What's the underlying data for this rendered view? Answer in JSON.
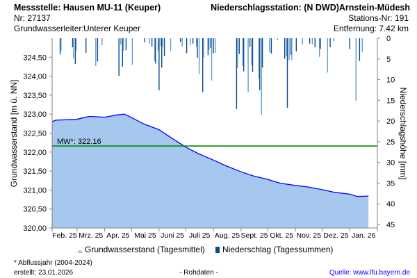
{
  "header": {
    "station": "Messstelle: Hausen MU-11 (Keuper)",
    "nr": "Nr: 27137",
    "aquifer_label": "Grundwasserleiter:",
    "aquifer": "Unterer Keuper",
    "precip_station": "Niederschlagsstation: (N DWD)Arnstein-Müdesh",
    "precip_nr": "Stations-Nr: 191",
    "distance": "Entfernung: 7.42 km"
  },
  "footer": {
    "note": "* Abflussjahr (2004-2024)",
    "created": "erstellt:  23.01.2026",
    "rawdata": "- Rohdaten -",
    "source": "Quelle: www.lfu.bayern.de"
  },
  "colors": {
    "fill": "#a6c8ef",
    "line": "#0000ff",
    "mean": "#008a00",
    "bar_dark": "#0b4a8b",
    "bar_light": "#5e9bd0",
    "source": "#0000ff"
  },
  "chart_data": {
    "type": "area",
    "ylabel": "Grundwasserstand [m ü. NN]",
    "y2label": "Niederschlagshöhe [mm]",
    "ylim": [
      320.0,
      325.0
    ],
    "yticks": [
      "320,00",
      "320,50",
      "321,00",
      "321,50",
      "322,00",
      "322,50",
      "323,00",
      "323,50",
      "324,00",
      "324,50"
    ],
    "y2lim": [
      0,
      45
    ],
    "y2ticks": [
      "0",
      "5",
      "10",
      "15",
      "20",
      "25",
      "30",
      "35",
      "40",
      "45"
    ],
    "xlim": [
      "2025-02-01",
      "2026-02-01"
    ],
    "xticks": [
      "Feb. 25",
      "Mrz. 25",
      "Apr. 25",
      "Mai 25",
      "Juni 25",
      "Juli 25",
      "Aug. 25",
      "Sept. 25",
      "Okt. 25",
      "Nov. 25",
      "Dez. 25",
      "Jan. 26"
    ],
    "mean_line": {
      "label": "MW*: 322.16",
      "value": 322.16
    },
    "legend": [
      "Grundwasserstand (Tagesmittel)",
      "Niederschlag (Tagessummen)"
    ],
    "series": [
      {
        "name": "Grundwasserstand (Tagesmittel)",
        "axis": "left",
        "points": [
          [
            "2025-02-01",
            322.8
          ],
          [
            "2025-02-05",
            322.84
          ],
          [
            "2025-02-28",
            322.86
          ],
          [
            "2025-03-15",
            322.94
          ],
          [
            "2025-04-01",
            322.92
          ],
          [
            "2025-04-15",
            322.98
          ],
          [
            "2025-04-23",
            323.0
          ],
          [
            "2025-05-01",
            322.91
          ],
          [
            "2025-05-15",
            322.74
          ],
          [
            "2025-06-01",
            322.59
          ],
          [
            "2025-06-15",
            322.37
          ],
          [
            "2025-07-01",
            322.13
          ],
          [
            "2025-07-15",
            321.96
          ],
          [
            "2025-08-01",
            321.79
          ],
          [
            "2025-08-15",
            321.64
          ],
          [
            "2025-09-01",
            321.48
          ],
          [
            "2025-09-15",
            321.37
          ],
          [
            "2025-10-01",
            321.28
          ],
          [
            "2025-10-15",
            321.18
          ],
          [
            "2025-11-01",
            321.12
          ],
          [
            "2025-11-15",
            321.08
          ],
          [
            "2025-12-01",
            321.01
          ],
          [
            "2025-12-15",
            320.94
          ],
          [
            "2026-01-01",
            320.89
          ],
          [
            "2026-01-10",
            320.83
          ],
          [
            "2026-01-22",
            320.84
          ]
        ]
      },
      {
        "name": "Niederschlag (Tagessummen)",
        "axis": "right",
        "points": [
          [
            "2025-02-10",
            3.9
          ],
          [
            "2025-02-11",
            3.0
          ],
          [
            "2025-02-24",
            2.2
          ],
          [
            "2025-02-25",
            4.9
          ],
          [
            "2025-02-27",
            6.2
          ],
          [
            "2025-02-28",
            3.0
          ],
          [
            "2025-03-11",
            3.5
          ],
          [
            "2025-03-22",
            6.7
          ],
          [
            "2025-03-24",
            5.6
          ],
          [
            "2025-03-29",
            1.7
          ],
          [
            "2025-04-17",
            9.1
          ],
          [
            "2025-04-19",
            1.5
          ],
          [
            "2025-04-21",
            6.9
          ],
          [
            "2025-04-22",
            3.1
          ],
          [
            "2025-04-25",
            2.9
          ],
          [
            "2025-05-02",
            6.4
          ],
          [
            "2025-05-16",
            1.0
          ],
          [
            "2025-05-21",
            1.3
          ],
          [
            "2025-05-24",
            2.0
          ],
          [
            "2025-05-27",
            5.5
          ],
          [
            "2025-05-28",
            6.1
          ],
          [
            "2025-05-31",
            3.1
          ],
          [
            "2025-06-01",
            12.6
          ],
          [
            "2025-06-03",
            1.9
          ],
          [
            "2025-06-04",
            7.1
          ],
          [
            "2025-06-05",
            2.1
          ],
          [
            "2025-06-07",
            4.3
          ],
          [
            "2025-06-14",
            3.1
          ],
          [
            "2025-06-25",
            0.9
          ],
          [
            "2025-06-27",
            2.0
          ],
          [
            "2025-07-02",
            3.6
          ],
          [
            "2025-07-06",
            1.7
          ],
          [
            "2025-07-09",
            1.3
          ],
          [
            "2025-07-13",
            2.0
          ],
          [
            "2025-07-14",
            4.7
          ],
          [
            "2025-07-16",
            8.7
          ],
          [
            "2025-07-20",
            13.0
          ],
          [
            "2025-07-21",
            4.7
          ],
          [
            "2025-07-26",
            4.1
          ],
          [
            "2025-07-27",
            2.8
          ],
          [
            "2025-07-29",
            2.3
          ],
          [
            "2025-07-30",
            10.2
          ],
          [
            "2025-08-01",
            3.6
          ],
          [
            "2025-08-03",
            3.5
          ],
          [
            "2025-08-27",
            17.1
          ],
          [
            "2025-08-28",
            7.2
          ],
          [
            "2025-08-30",
            3.8
          ],
          [
            "2025-09-03",
            6.7
          ],
          [
            "2025-09-04",
            8.0
          ],
          [
            "2025-09-09",
            13.1
          ],
          [
            "2025-09-11",
            2.1
          ],
          [
            "2025-09-13",
            6.5
          ],
          [
            "2025-09-14",
            8.2
          ],
          [
            "2025-09-21",
            9.8
          ],
          [
            "2025-09-22",
            12.6
          ],
          [
            "2025-09-24",
            18.5
          ],
          [
            "2025-09-25",
            7.1
          ],
          [
            "2025-10-03",
            3.4
          ],
          [
            "2025-10-05",
            3.7
          ],
          [
            "2025-10-12",
            0.5
          ],
          [
            "2025-10-20",
            5.0
          ],
          [
            "2025-10-22",
            4.3
          ],
          [
            "2025-10-23",
            16.8
          ],
          [
            "2025-10-25",
            5.3
          ],
          [
            "2025-10-27",
            4.0
          ],
          [
            "2025-10-28",
            5.3
          ],
          [
            "2025-11-02",
            3.2
          ],
          [
            "2025-11-09",
            1.5
          ],
          [
            "2025-11-17",
            1.3
          ],
          [
            "2025-11-20",
            1.5
          ],
          [
            "2025-11-23",
            2.2
          ],
          [
            "2025-11-28",
            4.5
          ],
          [
            "2025-11-29",
            2.6
          ],
          [
            "2025-12-07",
            8.3
          ],
          [
            "2025-12-10",
            2.2
          ],
          [
            "2025-12-14",
            0.7
          ],
          [
            "2026-01-01",
            2.6
          ],
          [
            "2026-01-08",
            15.1
          ],
          [
            "2026-01-12",
            5.5
          ],
          [
            "2026-01-15",
            3.4
          ]
        ]
      }
    ]
  }
}
